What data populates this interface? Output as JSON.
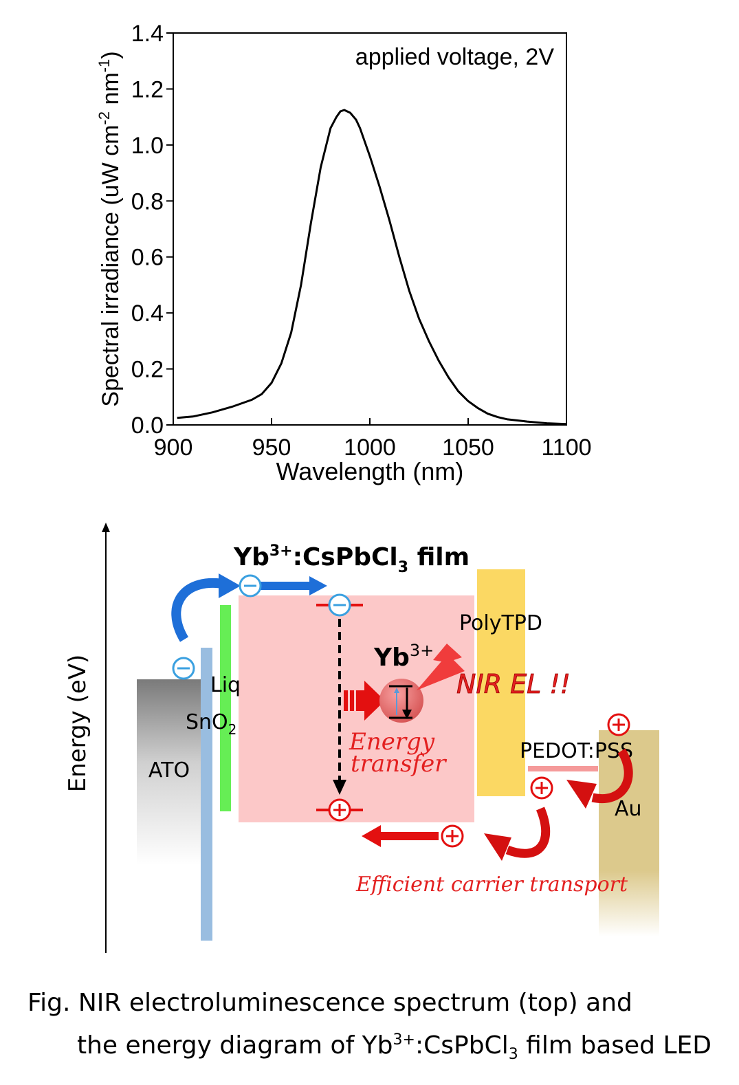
{
  "chart_data": {
    "type": "line",
    "annotation": "applied voltage, 2V",
    "xlabel": "Wavelength (nm)",
    "ylabel": "Spectral irradiance (uW cm-2 nm-1)",
    "ylabel_parts": {
      "a": "Spectral irradiance (uW cm",
      "b": "-2",
      "c": " nm",
      "d": "-1",
      "e": ")"
    },
    "xlim": [
      900,
      1100
    ],
    "ylim": [
      0,
      1.4
    ],
    "x_ticks": [
      "900",
      "950",
      "1000",
      "1050",
      "1100"
    ],
    "y_ticks": [
      "0.0",
      "0.2",
      "0.4",
      "0.6",
      "0.8",
      "1.0",
      "1.2",
      "1.4"
    ],
    "series": [
      {
        "x": [
          902,
          910,
          920,
          930,
          940,
          945,
          950,
          955,
          960,
          965,
          970,
          975,
          980,
          983,
          985,
          987,
          990,
          993,
          995,
          1000,
          1005,
          1010,
          1015,
          1020,
          1025,
          1030,
          1035,
          1040,
          1045,
          1050,
          1055,
          1060,
          1065,
          1070,
          1080,
          1090,
          1100
        ],
        "y": [
          0.025,
          0.03,
          0.045,
          0.065,
          0.09,
          0.11,
          0.15,
          0.22,
          0.33,
          0.5,
          0.72,
          0.92,
          1.06,
          1.1,
          1.12,
          1.125,
          1.115,
          1.09,
          1.06,
          0.96,
          0.85,
          0.73,
          0.6,
          0.48,
          0.38,
          0.3,
          0.23,
          0.17,
          0.12,
          0.085,
          0.06,
          0.04,
          0.028,
          0.02,
          0.012,
          0.006,
          0.003
        ],
        "color": "#000000"
      }
    ]
  },
  "diagram": {
    "axis_label": "Energy (eV)",
    "film_title": {
      "a": "Yb",
      "b": "3+",
      "c": ":CsPbCl",
      "d": "3",
      "e": " film"
    },
    "ion_label": {
      "a": "Yb",
      "b": "3+"
    },
    "layers": {
      "ato": "ATO",
      "sno2": {
        "a": "SnO",
        "b": "2"
      },
      "liq": "Liq",
      "polytpd": "PolyTPD",
      "pedot": "PEDOT:PSS",
      "au": "Au"
    },
    "nir_label": "NIR EL !!",
    "energy_transfer": {
      "line1": "Energy",
      "line2": "transfer"
    },
    "efficient_transport": "Efficient carrier transport",
    "colors": {
      "film": "#fcc8c8",
      "polytpd": "#fbd863",
      "liq": "#66ee55",
      "sno2": "#99bde0",
      "au": "#dcc98c",
      "electron_arrow": "#1e6fd8",
      "hole_arrow": "#e31010",
      "red_text": "#e32020"
    }
  },
  "caption": {
    "line1": "Fig. NIR electroluminescence spectrum (top) and",
    "line2": {
      "a": "the energy diagram of Yb",
      "b": "3+",
      "c": ":CsPbCl",
      "d": "3",
      "e": " film based LED"
    }
  }
}
